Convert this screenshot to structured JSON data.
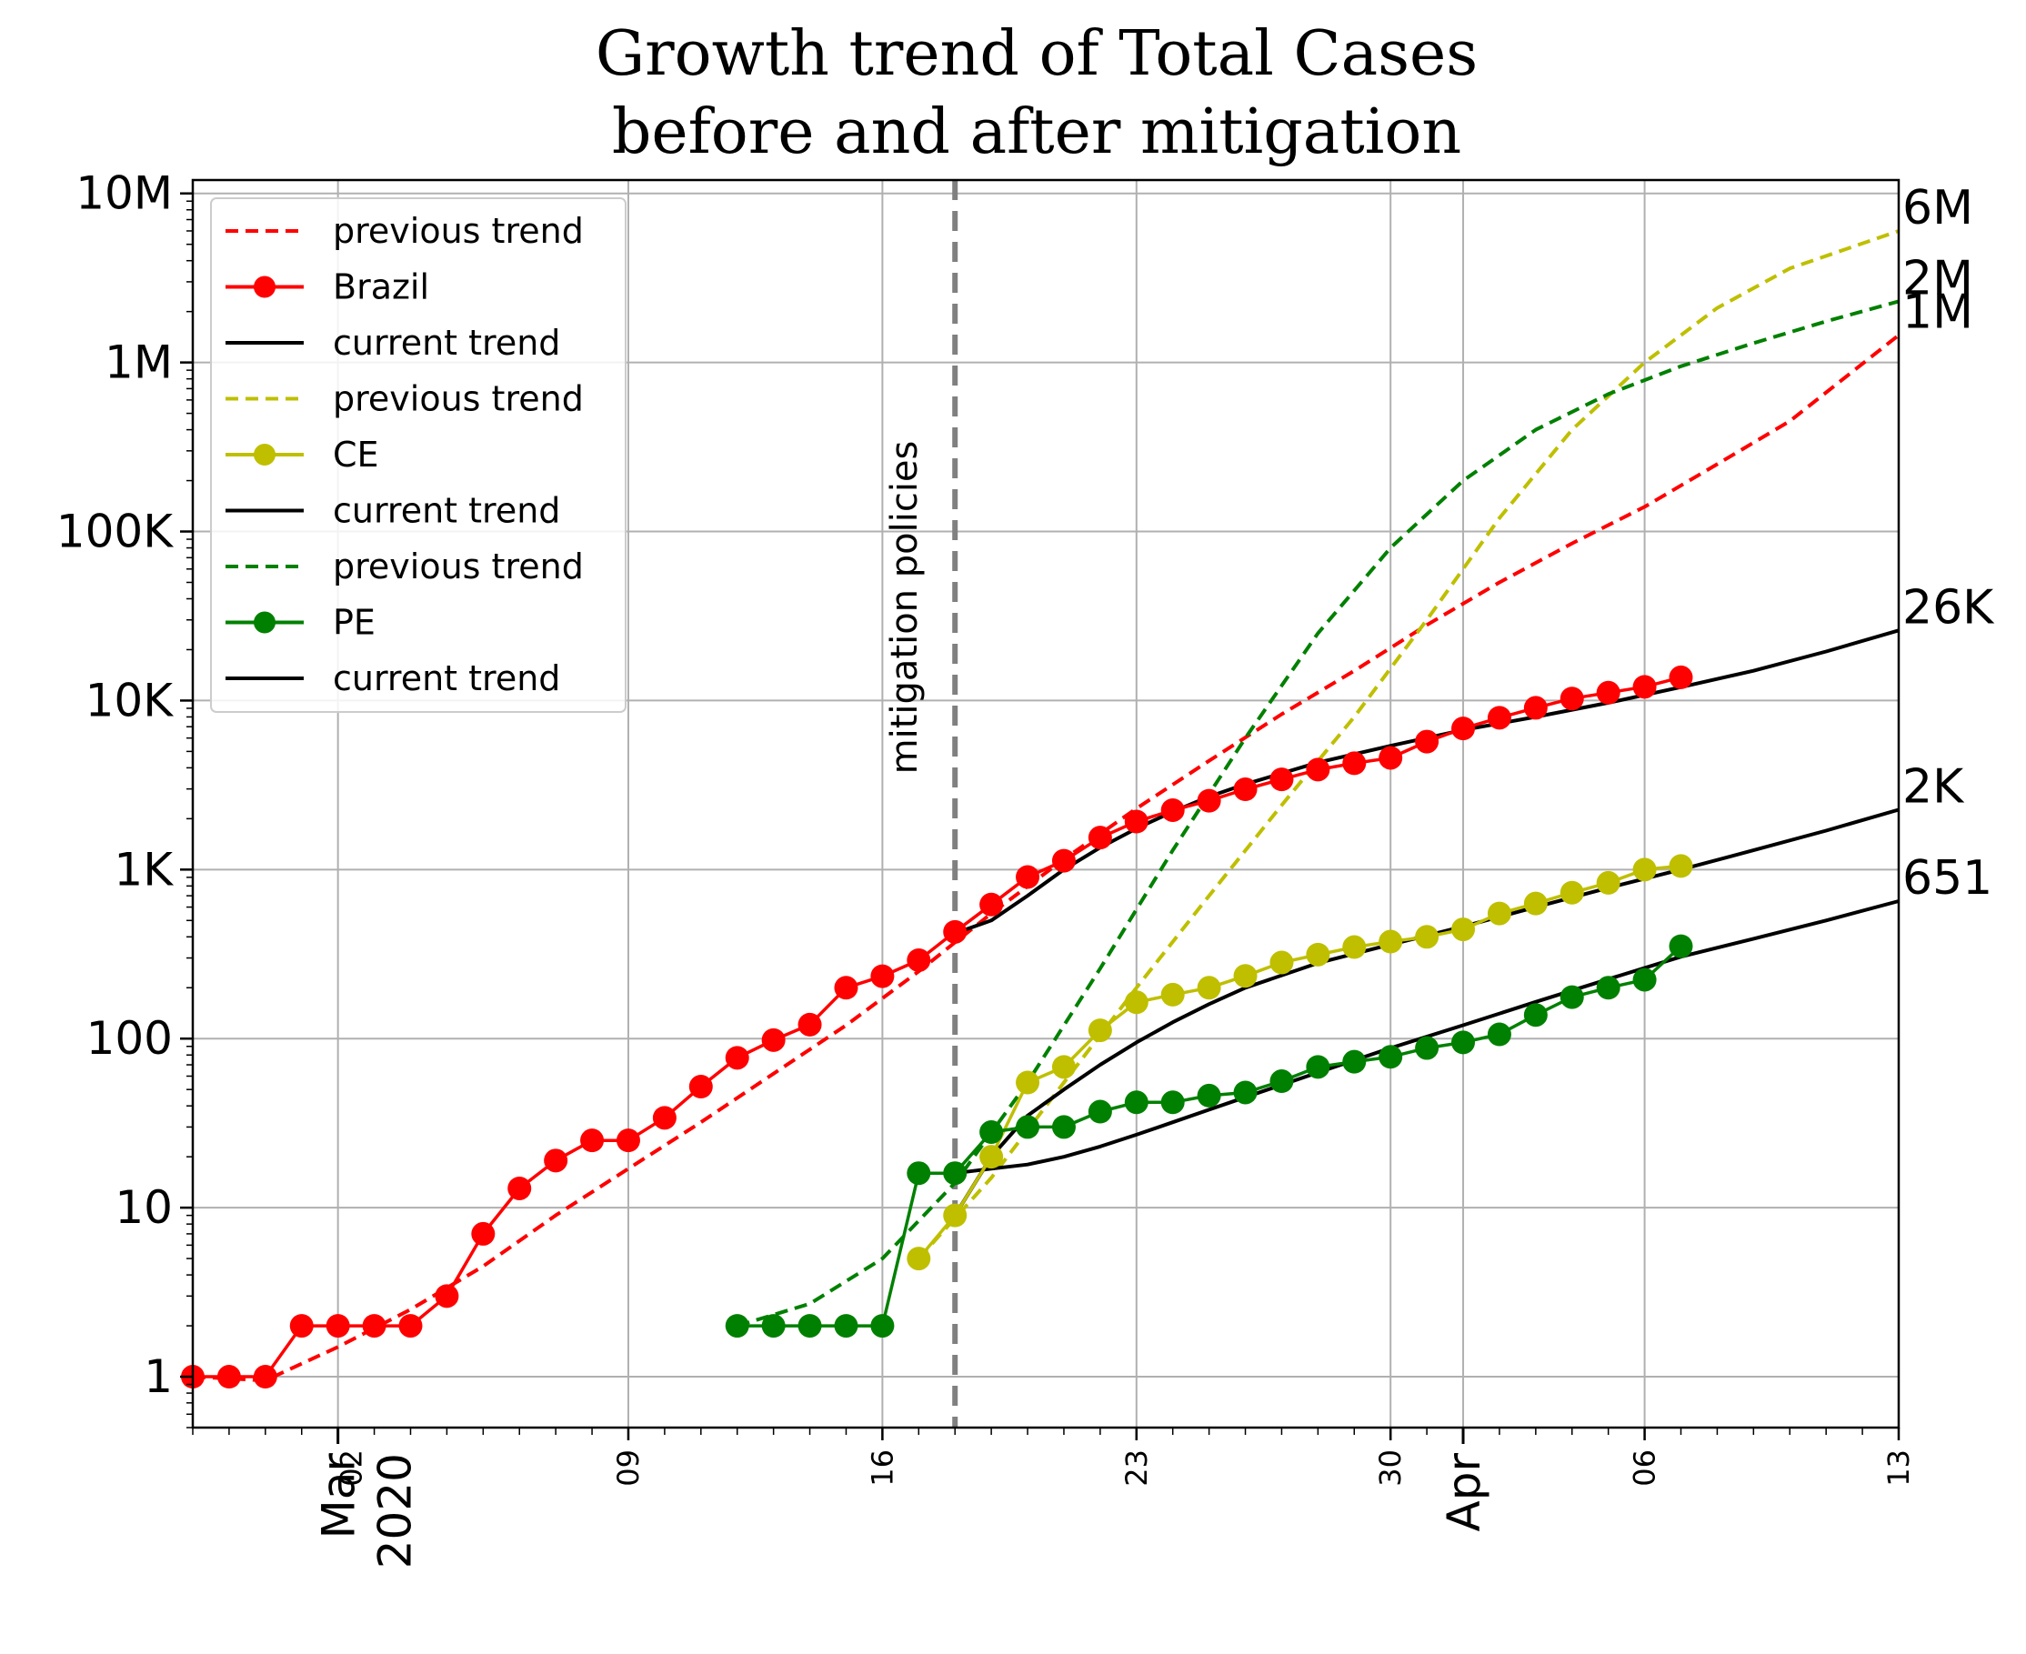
{
  "chart_data": {
    "type": "line",
    "title_line1": "Growth trend of Total Cases",
    "title_line2": "before and after mitigation",
    "yscale": "log",
    "ylim": [
      0.5,
      12000000
    ],
    "xlim": [
      "2020-02-26",
      "2020-04-13"
    ],
    "grid": true,
    "legend_placement": "top-left",
    "y_ticks": [
      {
        "value": 1,
        "label": "1"
      },
      {
        "value": 10,
        "label": "10"
      },
      {
        "value": 100,
        "label": "100"
      },
      {
        "value": 1000,
        "label": "1K"
      },
      {
        "value": 10000,
        "label": "10K"
      },
      {
        "value": 100000,
        "label": "100K"
      },
      {
        "value": 1000000,
        "label": "1M"
      },
      {
        "value": 10000000,
        "label": "10M"
      }
    ],
    "x_ticks_minor": [
      {
        "date": "2020-03-09",
        "label": "09"
      },
      {
        "date": "2020-03-16",
        "label": "16"
      },
      {
        "date": "2020-03-23",
        "label": "23"
      },
      {
        "date": "2020-03-30",
        "label": "30"
      },
      {
        "date": "2020-04-06",
        "label": "06"
      },
      {
        "date": "2020-04-13",
        "label": "13"
      }
    ],
    "x_ticks_major": [
      {
        "date": "2020-03-01",
        "label": "Mar\n2020",
        "overlap_label": "02"
      },
      {
        "date": "2020-04-01",
        "label": "Apr"
      }
    ],
    "mitigation": {
      "date": "2020-03-18",
      "label": "mitigation policies",
      "color": "#808080"
    },
    "end_labels": [
      {
        "text": "6M",
        "value": 6000000
      },
      {
        "text": "2M",
        "value": 2300000
      },
      {
        "text": "1M",
        "value": 1450000
      },
      {
        "text": "26K",
        "value": 26000
      },
      {
        "text": "2K",
        "value": 2260
      },
      {
        "text": "651",
        "value": 651
      }
    ],
    "series": [
      {
        "name": "previous trend",
        "region": "Brazil",
        "kind": "dashed",
        "color": "#ff0000",
        "points": [
          [
            "2020-02-26",
            1
          ],
          [
            "2020-02-28",
            0.95
          ],
          [
            "2020-03-01",
            1.5
          ],
          [
            "2020-03-03",
            2.5
          ],
          [
            "2020-03-05",
            4.5
          ],
          [
            "2020-03-07",
            9
          ],
          [
            "2020-03-09",
            17
          ],
          [
            "2020-03-11",
            32
          ],
          [
            "2020-03-13",
            62
          ],
          [
            "2020-03-15",
            120
          ],
          [
            "2020-03-17",
            250
          ],
          [
            "2020-03-19",
            550
          ],
          [
            "2020-03-21",
            1150
          ],
          [
            "2020-03-23",
            2300
          ],
          [
            "2020-03-25",
            4400
          ],
          [
            "2020-03-27",
            8300
          ],
          [
            "2020-03-29",
            15000
          ],
          [
            "2020-03-31",
            28000
          ],
          [
            "2020-04-02",
            50000
          ],
          [
            "2020-04-04",
            85000
          ],
          [
            "2020-04-06",
            140000
          ],
          [
            "2020-04-08",
            250000
          ],
          [
            "2020-04-10",
            450000
          ],
          [
            "2020-04-13",
            1450000
          ]
        ]
      },
      {
        "name": "Brazil",
        "kind": "markers",
        "color": "#ff0000",
        "points": [
          [
            "2020-02-26",
            1
          ],
          [
            "2020-02-27",
            1
          ],
          [
            "2020-02-28",
            1
          ],
          [
            "2020-02-29",
            2
          ],
          [
            "2020-03-01",
            2
          ],
          [
            "2020-03-02",
            2
          ],
          [
            "2020-03-03",
            2
          ],
          [
            "2020-03-04",
            3
          ],
          [
            "2020-03-05",
            7
          ],
          [
            "2020-03-06",
            13
          ],
          [
            "2020-03-07",
            19
          ],
          [
            "2020-03-08",
            25
          ],
          [
            "2020-03-09",
            25
          ],
          [
            "2020-03-10",
            34
          ],
          [
            "2020-03-11",
            52
          ],
          [
            "2020-03-12",
            77
          ],
          [
            "2020-03-13",
            98
          ],
          [
            "2020-03-14",
            121
          ],
          [
            "2020-03-15",
            200
          ],
          [
            "2020-03-16",
            234
          ],
          [
            "2020-03-17",
            291
          ],
          [
            "2020-03-18",
            428
          ],
          [
            "2020-03-19",
            621
          ],
          [
            "2020-03-20",
            904
          ],
          [
            "2020-03-21",
            1128
          ],
          [
            "2020-03-22",
            1546
          ],
          [
            "2020-03-23",
            1924
          ],
          [
            "2020-03-24",
            2247
          ],
          [
            "2020-03-25",
            2554
          ],
          [
            "2020-03-26",
            2985
          ],
          [
            "2020-03-27",
            3417
          ],
          [
            "2020-03-28",
            3904
          ],
          [
            "2020-03-29",
            4256
          ],
          [
            "2020-03-30",
            4579
          ],
          [
            "2020-03-31",
            5717
          ],
          [
            "2020-04-01",
            6836
          ],
          [
            "2020-04-02",
            7910
          ],
          [
            "2020-04-03",
            9056
          ],
          [
            "2020-04-04",
            10278
          ],
          [
            "2020-04-05",
            11130
          ],
          [
            "2020-04-06",
            12056
          ],
          [
            "2020-04-07",
            13717
          ]
        ]
      },
      {
        "name": "current trend",
        "region": "Brazil",
        "kind": "solid",
        "color": "#000000",
        "points": [
          [
            "2020-03-18",
            420
          ],
          [
            "2020-03-19",
            500
          ],
          [
            "2020-03-20",
            700
          ],
          [
            "2020-03-21",
            1000
          ],
          [
            "2020-03-22",
            1350
          ],
          [
            "2020-03-23",
            1750
          ],
          [
            "2020-03-24",
            2200
          ],
          [
            "2020-03-25",
            2700
          ],
          [
            "2020-03-26",
            3200
          ],
          [
            "2020-03-28",
            4300
          ],
          [
            "2020-03-30",
            5400
          ],
          [
            "2020-04-01",
            6700
          ],
          [
            "2020-04-03",
            8000
          ],
          [
            "2020-04-05",
            9700
          ],
          [
            "2020-04-07",
            12000
          ],
          [
            "2020-04-09",
            15000
          ],
          [
            "2020-04-11",
            19500
          ],
          [
            "2020-04-13",
            26000
          ]
        ]
      },
      {
        "name": "previous trend",
        "region": "CE",
        "kind": "dashed",
        "color": "#bfbf00",
        "points": [
          [
            "2020-03-17",
            5
          ],
          [
            "2020-03-19",
            15
          ],
          [
            "2020-03-21",
            55
          ],
          [
            "2020-03-23",
            200
          ],
          [
            "2020-03-25",
            700
          ],
          [
            "2020-03-27",
            2400
          ],
          [
            "2020-03-29",
            8000
          ],
          [
            "2020-03-31",
            30000
          ],
          [
            "2020-04-02",
            120000
          ],
          [
            "2020-04-04",
            400000
          ],
          [
            "2020-04-06",
            1000000
          ],
          [
            "2020-04-08",
            2100000
          ],
          [
            "2020-04-10",
            3600000
          ],
          [
            "2020-04-13",
            6000000
          ]
        ]
      },
      {
        "name": "CE",
        "kind": "markers",
        "color": "#bfbf00",
        "points": [
          [
            "2020-03-17",
            5
          ],
          [
            "2020-03-18",
            9
          ],
          [
            "2020-03-19",
            20
          ],
          [
            "2020-03-20",
            55
          ],
          [
            "2020-03-21",
            68
          ],
          [
            "2020-03-22",
            112
          ],
          [
            "2020-03-23",
            164
          ],
          [
            "2020-03-24",
            182
          ],
          [
            "2020-03-25",
            200
          ],
          [
            "2020-03-26",
            235
          ],
          [
            "2020-03-27",
            282
          ],
          [
            "2020-03-28",
            314
          ],
          [
            "2020-03-29",
            348
          ],
          [
            "2020-03-30",
            375
          ],
          [
            "2020-03-31",
            400
          ],
          [
            "2020-04-01",
            443
          ],
          [
            "2020-04-02",
            550
          ],
          [
            "2020-04-03",
            630
          ],
          [
            "2020-04-04",
            730
          ],
          [
            "2020-04-05",
            835
          ],
          [
            "2020-04-06",
            1000
          ],
          [
            "2020-04-07",
            1050
          ]
        ]
      },
      {
        "name": "current trend",
        "region": "CE",
        "kind": "solid",
        "color": "#000000",
        "points": [
          [
            "2020-03-18",
            9
          ],
          [
            "2020-03-19",
            20
          ],
          [
            "2020-03-20",
            35
          ],
          [
            "2020-03-21",
            50
          ],
          [
            "2020-03-22",
            70
          ],
          [
            "2020-03-23",
            95
          ],
          [
            "2020-03-24",
            125
          ],
          [
            "2020-03-25",
            160
          ],
          [
            "2020-03-26",
            200
          ],
          [
            "2020-03-28",
            280
          ],
          [
            "2020-03-30",
            360
          ],
          [
            "2020-04-01",
            460
          ],
          [
            "2020-04-03",
            600
          ],
          [
            "2020-04-05",
            780
          ],
          [
            "2020-04-07",
            1000
          ],
          [
            "2020-04-09",
            1300
          ],
          [
            "2020-04-11",
            1700
          ],
          [
            "2020-04-13",
            2260
          ]
        ]
      },
      {
        "name": "previous trend",
        "region": "PE",
        "kind": "dashed",
        "color": "#008000",
        "points": [
          [
            "2020-03-12",
            2
          ],
          [
            "2020-03-14",
            2.7
          ],
          [
            "2020-03-16",
            5
          ],
          [
            "2020-03-18",
            14
          ],
          [
            "2020-03-20",
            55
          ],
          [
            "2020-03-22",
            260
          ],
          [
            "2020-03-24",
            1300
          ],
          [
            "2020-03-26",
            6000
          ],
          [
            "2020-03-28",
            25000
          ],
          [
            "2020-03-30",
            80000
          ],
          [
            "2020-04-01",
            200000
          ],
          [
            "2020-04-03",
            400000
          ],
          [
            "2020-04-05",
            650000
          ],
          [
            "2020-04-07",
            950000
          ],
          [
            "2020-04-09",
            1300000
          ],
          [
            "2020-04-11",
            1750000
          ],
          [
            "2020-04-13",
            2300000
          ]
        ]
      },
      {
        "name": "PE",
        "kind": "markers",
        "color": "#008000",
        "points": [
          [
            "2020-03-12",
            2
          ],
          [
            "2020-03-13",
            2
          ],
          [
            "2020-03-14",
            2
          ],
          [
            "2020-03-15",
            2
          ],
          [
            "2020-03-16",
            2
          ],
          [
            "2020-03-17",
            16
          ],
          [
            "2020-03-18",
            16
          ],
          [
            "2020-03-19",
            28
          ],
          [
            "2020-03-20",
            30
          ],
          [
            "2020-03-21",
            30
          ],
          [
            "2020-03-22",
            37
          ],
          [
            "2020-03-23",
            42
          ],
          [
            "2020-03-24",
            42
          ],
          [
            "2020-03-25",
            46
          ],
          [
            "2020-03-26",
            48
          ],
          [
            "2020-03-27",
            56
          ],
          [
            "2020-03-28",
            68
          ],
          [
            "2020-03-29",
            73
          ],
          [
            "2020-03-30",
            78
          ],
          [
            "2020-03-31",
            88
          ],
          [
            "2020-04-01",
            95
          ],
          [
            "2020-04-02",
            106
          ],
          [
            "2020-04-03",
            138
          ],
          [
            "2020-04-04",
            176
          ],
          [
            "2020-04-05",
            200
          ],
          [
            "2020-04-06",
            223
          ],
          [
            "2020-04-07",
            352
          ]
        ]
      },
      {
        "name": "current trend",
        "region": "PE",
        "kind": "solid",
        "color": "#000000",
        "points": [
          [
            "2020-03-18",
            16
          ],
          [
            "2020-03-19",
            17
          ],
          [
            "2020-03-20",
            18
          ],
          [
            "2020-03-21",
            20
          ],
          [
            "2020-03-22",
            23
          ],
          [
            "2020-03-23",
            27
          ],
          [
            "2020-03-24",
            32
          ],
          [
            "2020-03-25",
            38
          ],
          [
            "2020-03-26",
            45
          ],
          [
            "2020-03-28",
            63
          ],
          [
            "2020-03-30",
            88
          ],
          [
            "2020-04-01",
            120
          ],
          [
            "2020-04-03",
            165
          ],
          [
            "2020-04-05",
            225
          ],
          [
            "2020-04-07",
            305
          ],
          [
            "2020-04-09",
            390
          ],
          [
            "2020-04-11",
            500
          ],
          [
            "2020-04-13",
            651
          ]
        ]
      }
    ],
    "legend": [
      {
        "label": "previous trend",
        "color": "#ff0000",
        "kind": "dashed"
      },
      {
        "label": "Brazil",
        "color": "#ff0000",
        "kind": "markers"
      },
      {
        "label": "current trend",
        "color": "#000000",
        "kind": "solid"
      },
      {
        "label": "previous trend",
        "color": "#bfbf00",
        "kind": "dashed"
      },
      {
        "label": "CE",
        "color": "#bfbf00",
        "kind": "markers"
      },
      {
        "label": "current trend",
        "color": "#000000",
        "kind": "solid"
      },
      {
        "label": "previous trend",
        "color": "#008000",
        "kind": "dashed"
      },
      {
        "label": "PE",
        "color": "#008000",
        "kind": "markers"
      },
      {
        "label": "current trend",
        "color": "#000000",
        "kind": "solid"
      }
    ]
  }
}
